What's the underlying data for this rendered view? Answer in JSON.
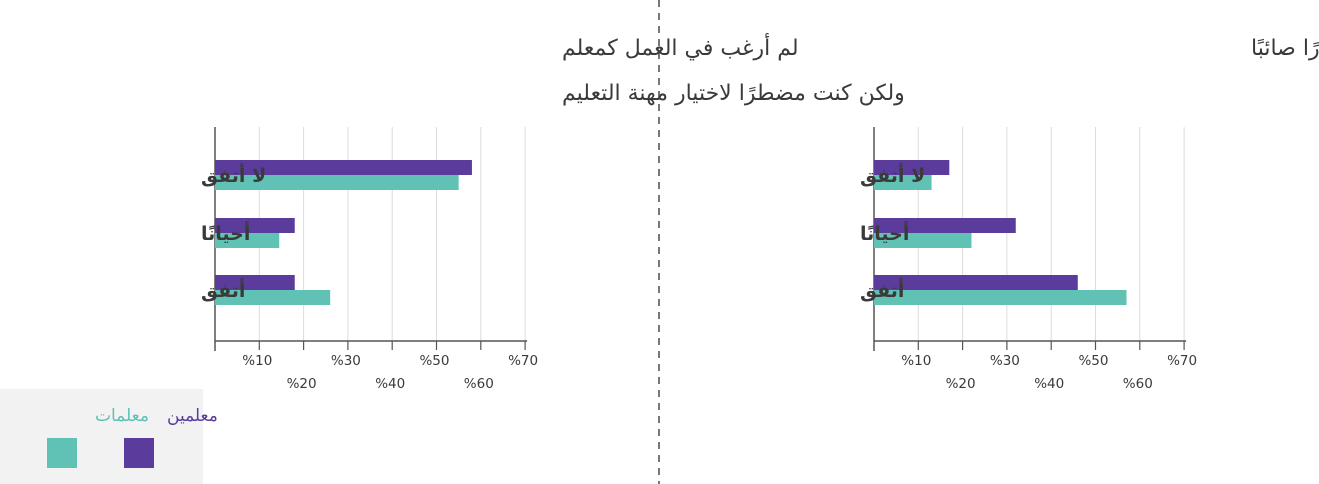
{
  "colors": {
    "male": "#5b3c9c",
    "female": "#5fc2b4",
    "grid": "#dcdcdc",
    "axis": "#555555",
    "divider": "#777777",
    "legend_bg": "#f2f2f2",
    "text": "#3a3a3a"
  },
  "legend": {
    "male_label": "معلمين",
    "female_label": "معلمات"
  },
  "chart_data": [
    {
      "type": "bar",
      "orientation": "horizontal",
      "title": "أشعر أن اختياري لمهنة التعليم كان قرارًا صائبًا",
      "categories": [
        "لا أتفق",
        "أحيانًا",
        "أتفق"
      ],
      "series": [
        {
          "name": "معلمين",
          "color": "#5b3c9c",
          "values": [
            17,
            32,
            46
          ]
        },
        {
          "name": "معلمات",
          "color": "#5fc2b4",
          "values": [
            13,
            22,
            57
          ]
        }
      ],
      "xlim": [
        0,
        70
      ],
      "ticks": [
        {
          "value": 10,
          "label": "%10"
        },
        {
          "value": 20,
          "label": "%20"
        },
        {
          "value": 30,
          "label": "%30"
        },
        {
          "value": 40,
          "label": "%40"
        },
        {
          "value": 50,
          "label": "%50"
        },
        {
          "value": 60,
          "label": "%60"
        },
        {
          "value": 70,
          "label": "%70"
        }
      ],
      "grid": true
    },
    {
      "type": "bar",
      "orientation": "horizontal",
      "title": "لم أرغب في العمل كمعلم ولكن كنت مضطرًا لاختيار مهنة التعليم",
      "title_lines": [
        "لم أرغب في العمل كمعلم",
        "ولكن كنت مضطرًا لاختيار مهنة التعليم"
      ],
      "categories": [
        "لا أتفق",
        "أحيانًا",
        "أتفق"
      ],
      "series": [
        {
          "name": "معلمين",
          "color": "#5b3c9c",
          "values": [
            58,
            18,
            18
          ]
        },
        {
          "name": "معلمات",
          "color": "#5fc2b4",
          "values": [
            55,
            14.5,
            26
          ]
        }
      ],
      "xlim": [
        0,
        70
      ],
      "ticks": [
        {
          "value": 10,
          "label": "%10"
        },
        {
          "value": 20,
          "label": "%20"
        },
        {
          "value": 30,
          "label": "%30"
        },
        {
          "value": 40,
          "label": "%40"
        },
        {
          "value": 50,
          "label": "%50"
        },
        {
          "value": 60,
          "label": "%60"
        },
        {
          "value": 70,
          "label": "%70"
        }
      ],
      "grid": true
    }
  ]
}
